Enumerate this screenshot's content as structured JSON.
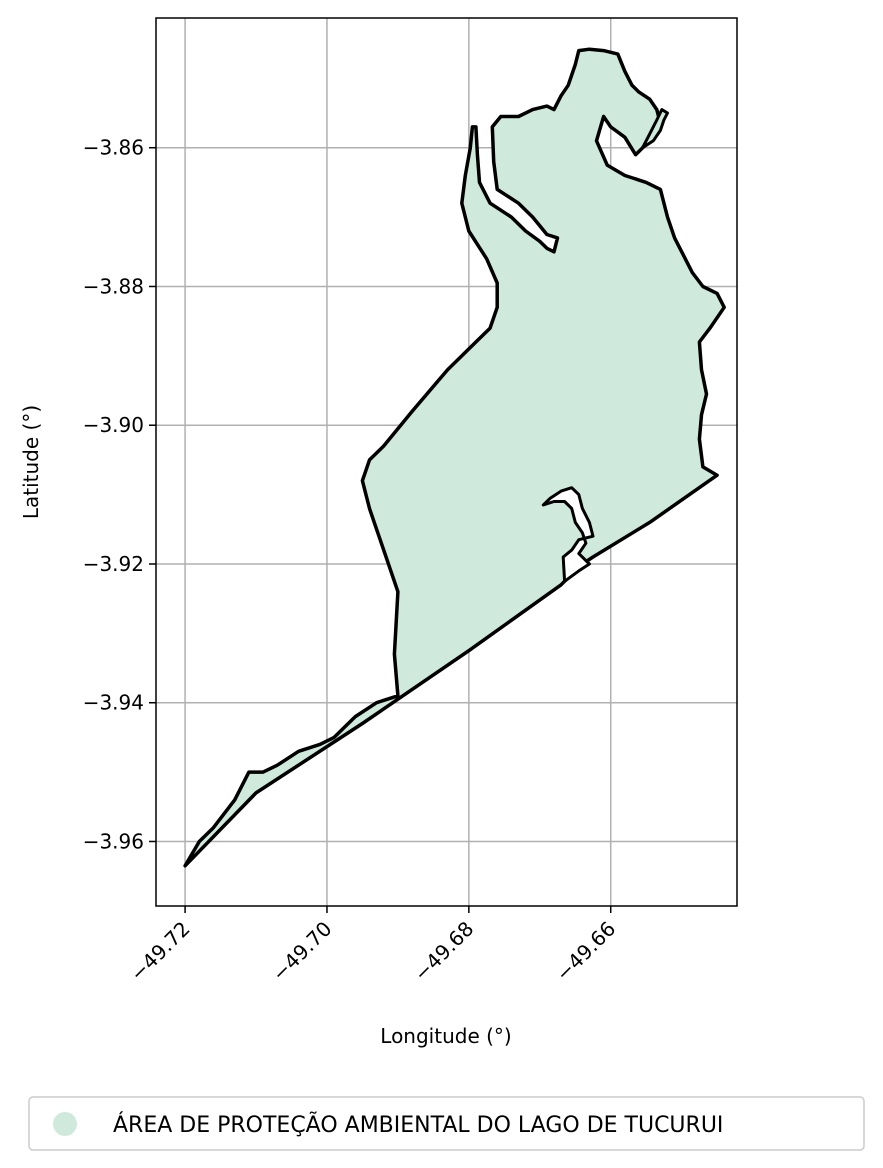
{
  "map": {
    "xlabel": "Longitude (°)",
    "ylabel": "Latitude (°)",
    "xlim": [
      -49.7241,
      -49.6422
    ],
    "ylim": [
      -3.9693,
      -3.8413
    ],
    "grid": true,
    "x_ticks": [
      {
        "value": -49.72,
        "label": "−49.72"
      },
      {
        "value": -49.7,
        "label": "−49.70"
      },
      {
        "value": -49.68,
        "label": "−49.68"
      },
      {
        "value": -49.66,
        "label": "−49.66"
      }
    ],
    "y_ticks": [
      {
        "value": -3.86,
        "label": "−3.86"
      },
      {
        "value": -3.88,
        "label": "−3.88"
      },
      {
        "value": -3.9,
        "label": "−3.90"
      },
      {
        "value": -3.92,
        "label": "−3.92"
      },
      {
        "value": -3.94,
        "label": "−3.94"
      },
      {
        "value": -3.96,
        "label": "−3.96"
      }
    ],
    "fill_color": "#cfeadd",
    "edge_color": "#000000",
    "grid_color": "#b0b0b0",
    "legend": {
      "placement": "bottom",
      "label": "ÁREA DE PROTEÇÃO AMBIENTAL DO LAGO DE TUCURUI",
      "marker_color": "#cfeadd"
    },
    "outline": [
      [
        -49.72,
        -3.9635
      ],
      [
        -49.718,
        -3.96
      ],
      [
        -49.716,
        -3.958
      ],
      [
        -49.713,
        -3.954
      ],
      [
        -49.711,
        -3.95
      ],
      [
        -49.709,
        -3.95
      ],
      [
        -49.707,
        -3.949
      ],
      [
        -49.704,
        -3.947
      ],
      [
        -49.701,
        -3.946
      ],
      [
        -49.699,
        -3.945
      ],
      [
        -49.696,
        -3.942
      ],
      [
        -49.693,
        -3.94
      ],
      [
        -49.69,
        -3.939
      ],
      [
        -49.6905,
        -3.933
      ],
      [
        -49.69,
        -3.924
      ],
      [
        -49.692,
        -3.918
      ],
      [
        -49.694,
        -3.912
      ],
      [
        -49.695,
        -3.908
      ],
      [
        -49.694,
        -3.905
      ],
      [
        -49.692,
        -3.903
      ],
      [
        -49.688,
        -3.898
      ],
      [
        -49.683,
        -3.892
      ],
      [
        -49.679,
        -3.888
      ],
      [
        -49.677,
        -3.886
      ],
      [
        -49.676,
        -3.883
      ],
      [
        -49.676,
        -3.8795
      ],
      [
        -49.6775,
        -3.876
      ],
      [
        -49.68,
        -3.872
      ],
      [
        -49.681,
        -3.868
      ],
      [
        -49.6805,
        -3.864
      ],
      [
        -49.6798,
        -3.86
      ],
      [
        -49.6795,
        -3.857
      ],
      [
        -49.679,
        -3.857
      ],
      [
        -49.6788,
        -3.861
      ],
      [
        -49.6785,
        -3.865
      ],
      [
        -49.677,
        -3.868
      ],
      [
        -49.674,
        -3.87
      ],
      [
        -49.672,
        -3.872
      ],
      [
        -49.67,
        -3.8735
      ],
      [
        -49.669,
        -3.8745
      ],
      [
        -49.668,
        -3.875
      ],
      [
        -49.6675,
        -3.873
      ],
      [
        -49.669,
        -3.8725
      ],
      [
        -49.671,
        -3.87
      ],
      [
        -49.673,
        -3.868
      ],
      [
        -49.676,
        -3.866
      ],
      [
        -49.6765,
        -3.862
      ],
      [
        -49.6767,
        -3.857
      ],
      [
        -49.6755,
        -3.8555
      ],
      [
        -49.673,
        -3.8555
      ],
      [
        -49.671,
        -3.8545
      ],
      [
        -49.669,
        -3.854
      ],
      [
        -49.668,
        -3.8545
      ],
      [
        -49.667,
        -3.8525
      ],
      [
        -49.666,
        -3.851
      ],
      [
        -49.665,
        -3.848
      ],
      [
        -49.6645,
        -3.846
      ],
      [
        -49.663,
        -3.8458
      ],
      [
        -49.661,
        -3.846
      ],
      [
        -49.659,
        -3.8465
      ],
      [
        -49.658,
        -3.849
      ],
      [
        -49.657,
        -3.851
      ],
      [
        -49.656,
        -3.852
      ],
      [
        -49.6545,
        -3.853
      ],
      [
        -49.6535,
        -3.8545
      ],
      [
        -49.653,
        -3.8565
      ],
      [
        -49.654,
        -3.858
      ],
      [
        -49.655,
        -3.8595
      ],
      [
        -49.6565,
        -3.861
      ],
      [
        -49.658,
        -3.8585
      ],
      [
        -49.66,
        -3.857
      ],
      [
        -49.661,
        -3.8555
      ],
      [
        -49.662,
        -3.859
      ],
      [
        -49.6605,
        -3.8625
      ],
      [
        -49.658,
        -3.864
      ],
      [
        -49.655,
        -3.865
      ],
      [
        -49.653,
        -3.866
      ],
      [
        -49.652,
        -3.87
      ],
      [
        -49.651,
        -3.873
      ],
      [
        -49.65,
        -3.875
      ],
      [
        -49.6485,
        -3.878
      ],
      [
        -49.647,
        -3.88
      ],
      [
        -49.645,
        -3.881
      ],
      [
        -49.644,
        -3.883
      ],
      [
        -49.646,
        -3.886
      ],
      [
        -49.6475,
        -3.888
      ],
      [
        -49.6472,
        -3.892
      ],
      [
        -49.6465,
        -3.8955
      ],
      [
        -49.6472,
        -3.8985
      ],
      [
        -49.6475,
        -3.902
      ],
      [
        -49.647,
        -3.906
      ],
      [
        -49.645,
        -3.9072
      ],
      [
        -49.6545,
        -3.914
      ],
      [
        -49.6625,
        -3.919
      ],
      [
        -49.664,
        -3.92
      ],
      [
        -49.6655,
        -3.9215
      ],
      [
        -49.6665,
        -3.9225
      ],
      [
        -49.667,
        -3.923
      ],
      [
        -49.68,
        -3.9325
      ],
      [
        -49.695,
        -3.943
      ],
      [
        -49.71,
        -3.953
      ],
      [
        -49.72,
        -3.9635
      ]
    ],
    "inlet": [
      [
        -49.6665,
        -3.9225
      ],
      [
        -49.6667,
        -3.919
      ],
      [
        -49.6655,
        -3.918
      ],
      [
        -49.6645,
        -3.9165
      ],
      [
        -49.6625,
        -3.916
      ],
      [
        -49.663,
        -3.914
      ],
      [
        -49.664,
        -3.912
      ],
      [
        -49.6645,
        -3.91
      ],
      [
        -49.6655,
        -3.909
      ],
      [
        -49.667,
        -3.9095
      ],
      [
        -49.6685,
        -3.9105
      ],
      [
        -49.6695,
        -3.9115
      ],
      [
        -49.668,
        -3.911
      ],
      [
        -49.6665,
        -3.911
      ],
      [
        -49.6655,
        -3.912
      ],
      [
        -49.665,
        -3.914
      ],
      [
        -49.664,
        -3.9155
      ],
      [
        -49.6635,
        -3.917
      ],
      [
        -49.6645,
        -3.9185
      ],
      [
        -49.663,
        -3.92
      ],
      [
        -49.6645,
        -3.921
      ],
      [
        -49.6665,
        -3.9225
      ]
    ],
    "peninsula": [
      [
        -49.6555,
        -3.86
      ],
      [
        -49.654,
        -3.859
      ],
      [
        -49.653,
        -3.8575
      ],
      [
        -49.6525,
        -3.856
      ],
      [
        -49.652,
        -3.855
      ],
      [
        -49.6528,
        -3.8545
      ],
      [
        -49.6535,
        -3.856
      ],
      [
        -49.6545,
        -3.858
      ],
      [
        -49.6555,
        -3.86
      ]
    ]
  }
}
